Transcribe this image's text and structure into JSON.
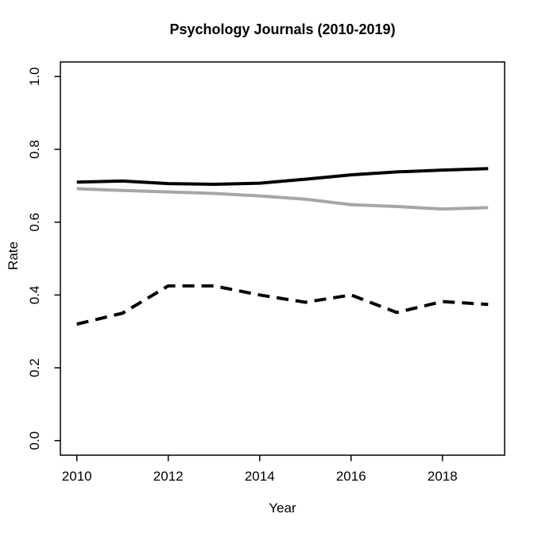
{
  "chart_data": {
    "type": "line",
    "title": "Psychology Journals (2010-2019)",
    "xlabel": "Year",
    "ylabel": "Rate",
    "x": [
      2010,
      2011,
      2012,
      2013,
      2014,
      2015,
      2016,
      2017,
      2018,
      2019
    ],
    "series": [
      {
        "name": "series-solid-black",
        "color": "#000000",
        "line_style": "solid",
        "values": [
          0.71,
          0.713,
          0.706,
          0.704,
          0.707,
          0.718,
          0.73,
          0.738,
          0.743,
          0.747
        ]
      },
      {
        "name": "series-solid-gray",
        "color": "#a6a6a6",
        "line_style": "solid",
        "values": [
          0.692,
          0.687,
          0.683,
          0.679,
          0.672,
          0.663,
          0.648,
          0.643,
          0.636,
          0.64
        ]
      },
      {
        "name": "series-dashed-black",
        "color": "#000000",
        "line_style": "dashed",
        "values": [
          0.32,
          0.35,
          0.425,
          0.425,
          0.4,
          0.38,
          0.4,
          0.352,
          0.382,
          0.374
        ]
      }
    ],
    "xticks": [
      "2010",
      "2012",
      "2014",
      "2016",
      "2018"
    ],
    "yticks": [
      "0.0",
      "0.2",
      "0.4",
      "0.6",
      "0.8",
      "1.0"
    ],
    "xlim": [
      2009.64,
      2019.36
    ],
    "ylim": [
      -0.04,
      1.04
    ],
    "grid": false,
    "legend": "none",
    "axis_color": "#000000"
  }
}
